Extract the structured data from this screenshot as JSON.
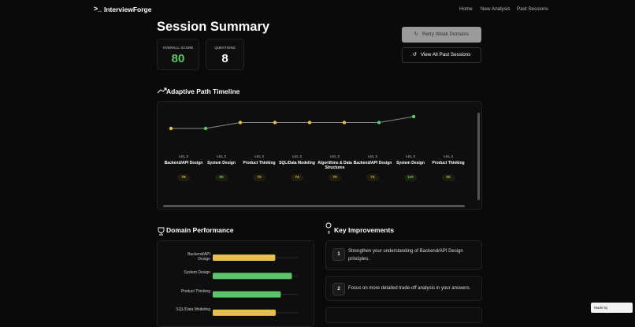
{
  "nav": {
    "brand": "InterviewForge",
    "links": [
      "Home",
      "New Analysis",
      "Past Sessions"
    ]
  },
  "header": {
    "title": "Session Summary",
    "buttons": [
      "Retry Weak Domains",
      "View All Past Sessions"
    ]
  },
  "stats": [
    {
      "label": "OVERALL SCORE",
      "value": 80,
      "color": "#5cc46a"
    },
    {
      "label": "QUESTIONS",
      "value": 8,
      "color": "#ffffff"
    }
  ],
  "chart_data": [
    {
      "type": "line",
      "title": "Adaptive Path Timeline",
      "categories": [
        "Backend/API Design",
        "System Design",
        "Product Thinking",
        "SQL/Data Modeling",
        "Algorithms & Data Structures",
        "Backend/API Design",
        "System Design",
        "Product Thinking"
      ],
      "values": [
        2,
        2,
        3,
        3,
        3,
        3,
        3,
        4
      ],
      "value_labels": [
        "LVL 2",
        "LVL 2",
        "LVL 3",
        "LVL 3",
        "LVL 3",
        "LVL 3",
        "LVL 3",
        "LVL 4"
      ],
      "scores": [
        76,
        86,
        72,
        74,
        70,
        71,
        100,
        88
      ],
      "point_colors": [
        "#e6c04a",
        "#5cc46a",
        "#e6c04a",
        "#e6c04a",
        "#e6c04a",
        "#e6c04a",
        "#5cc46a",
        "#5cc46a"
      ],
      "line_color": "#8a8a8a"
    },
    {
      "type": "bar",
      "orientation": "horizontal",
      "title": "Domain Performance",
      "categories": [
        "Backend/API Design",
        "System Design",
        "Product Thinking",
        "SQL/Data Modeling"
      ],
      "values": [
        73.5,
        93,
        80,
        74
      ],
      "colors": [
        "#e6c04a",
        "#5cc46a",
        "#5cc46a",
        "#e6c04a"
      ],
      "xlim": [
        0,
        100
      ]
    }
  ],
  "improvements": {
    "title": "Key Improvements",
    "items": [
      {
        "number": 1,
        "text": "Strengthen your understanding of Backend/API Design principles."
      },
      {
        "number": 2,
        "text": "Focus on more detailed trade-off analysis in your answers."
      }
    ]
  },
  "badge": {
    "text": "Made by"
  }
}
